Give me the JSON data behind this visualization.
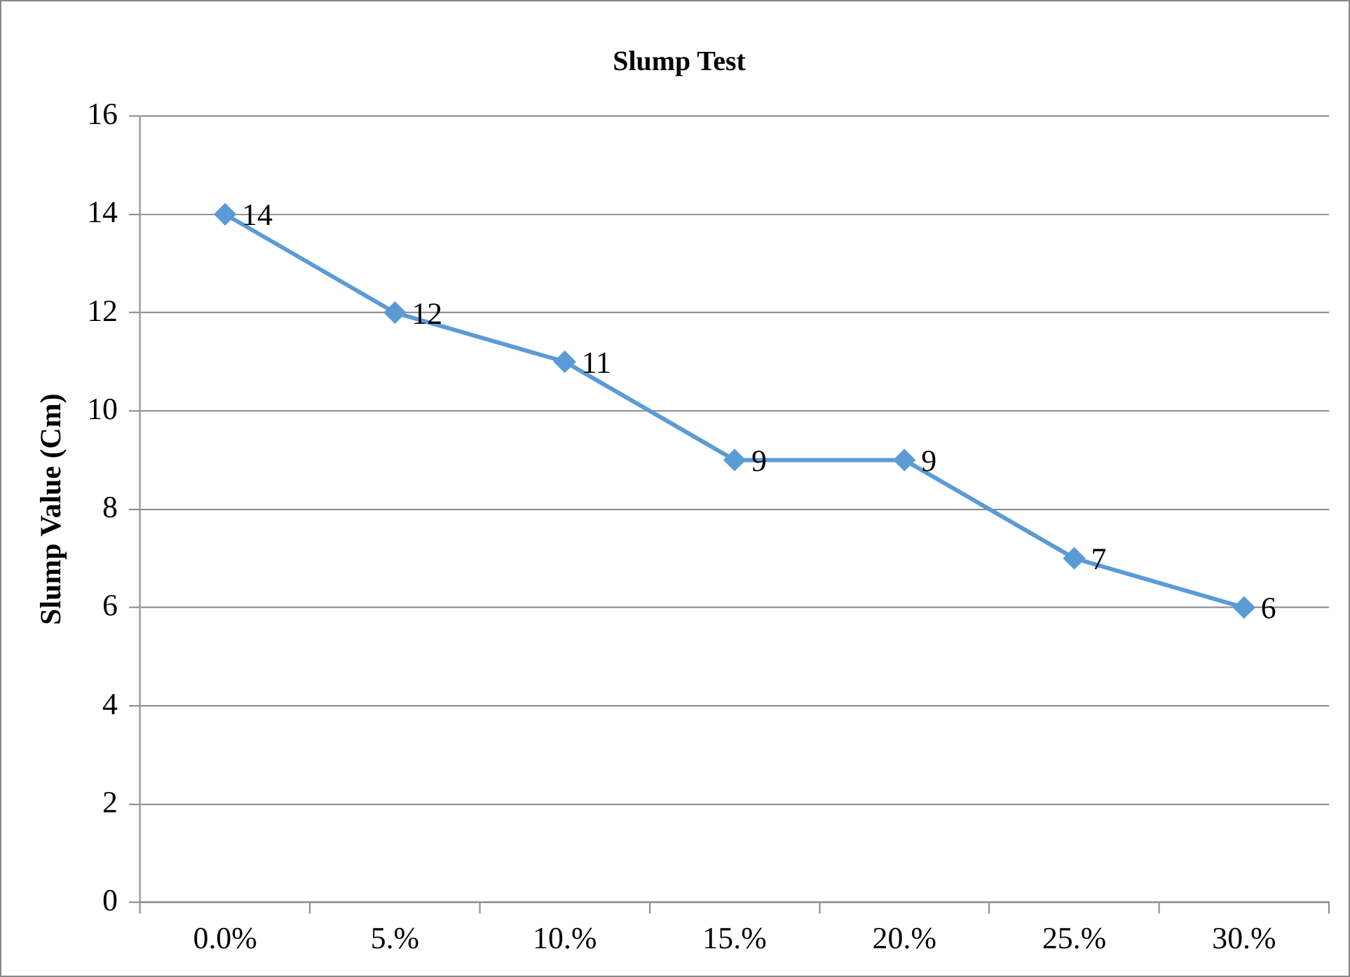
{
  "chart_data": {
    "type": "line",
    "title": "Slump Test",
    "ylabel": "Slump Value (Cm)",
    "categories": [
      "0.0%",
      "5.%",
      "10.%",
      "15.%",
      "20.%",
      "25.%",
      "30.%"
    ],
    "series": [
      {
        "color": "#5b9bd5",
        "values": [
          14,
          12,
          11,
          9,
          9,
          7,
          6
        ]
      }
    ],
    "ylim": [
      0,
      16
    ],
    "yticks": [
      0,
      2,
      4,
      6,
      8,
      10,
      12,
      14,
      16
    ],
    "grid": "y",
    "legend": false,
    "marker": "diamond",
    "line_style": "solid",
    "data_labels": true
  }
}
